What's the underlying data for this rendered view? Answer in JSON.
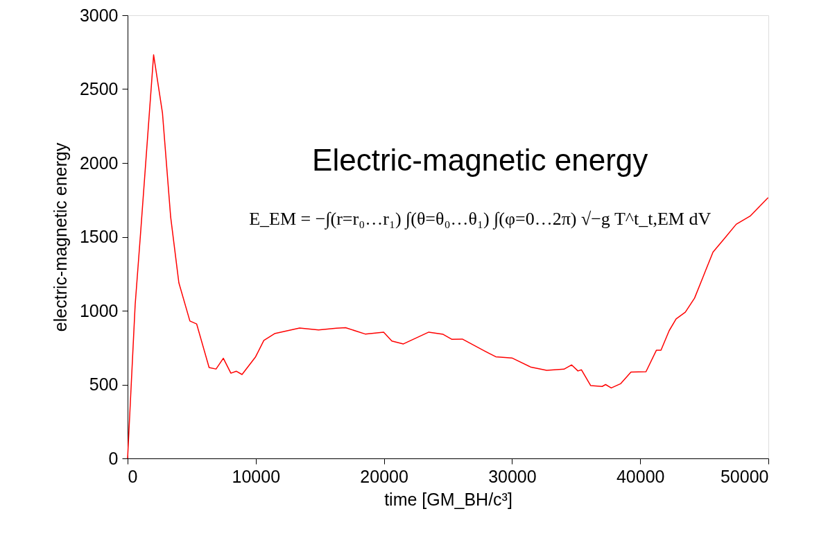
{
  "chart_data": {
    "type": "line",
    "xlabel": "time [GM_BH/c³]",
    "ylabel": "electric-magnetic energy",
    "annotations": [
      "Electric-magnetic energy",
      "E_EM = −∫(r=r₀…r₁) ∫(θ=θ₀…θ₁) ∫(φ=0…2π) √−g T^t_t,EM dV"
    ],
    "xlim": [
      0,
      50000
    ],
    "xticks": [
      0,
      10000,
      20000,
      30000,
      40000,
      50000
    ],
    "ylim": [
      0,
      3000
    ],
    "yticks": [
      0,
      500,
      1000,
      1500,
      2000,
      2500,
      3000
    ],
    "grid": false,
    "marker": "none",
    "line_style": "solid",
    "series": [
      {
        "color": "#ff0000",
        "x": [
          0,
          590,
          1010,
          2030,
          2720,
          3360,
          4000,
          4860,
          5390,
          6360,
          6900,
          7470,
          8060,
          8490,
          8930,
          9990,
          10630,
          11470,
          13420,
          14900,
          16290,
          17010,
          18540,
          19980,
          20620,
          21520,
          23500,
          24620,
          25310,
          26120,
          27830,
          28730,
          29990,
          31440,
          32700,
          34050,
          34650,
          35140,
          35410,
          36130,
          37030,
          37300,
          37740,
          38460,
          39280,
          40450,
          41260,
          41620,
          42260,
          42800,
          43520,
          44240,
          44960,
          45680,
          46590,
          47490,
          48570,
          49980
        ],
        "values": [
          0,
          1040,
          1522,
          2732,
          2339,
          1634,
          1189,
          930,
          910,
          615,
          605,
          678,
          577,
          590,
          568,
          688,
          799,
          845,
          883,
          870,
          881,
          885,
          842,
          855,
          795,
          775,
          855,
          840,
          806,
          808,
          728,
          688,
          680,
          619,
          596,
          604,
          633,
          592,
          600,
          493,
          487,
          500,
          477,
          505,
          584,
          587,
          732,
          732,
          865,
          944,
          990,
          1085,
          1241,
          1397,
          1491,
          1585,
          1640,
          1765
        ]
      }
    ]
  }
}
